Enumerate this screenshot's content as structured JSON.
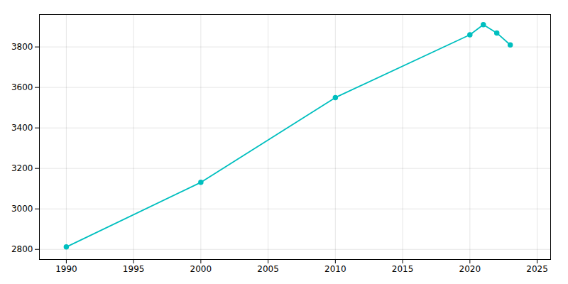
{
  "chart_data": {
    "type": "line",
    "x": [
      1990,
      2000,
      2010,
      2020,
      2021,
      2022,
      2023
    ],
    "values": [
      2812,
      3131,
      3550,
      3860,
      3910,
      3869,
      3810
    ],
    "color": "#00BFBF",
    "marker": "circle",
    "xlim": [
      1988,
      2026
    ],
    "ylim": [
      2750,
      3960
    ],
    "xticks": [
      1990,
      1995,
      2000,
      2005,
      2010,
      2015,
      2020,
      2025
    ],
    "yticks": [
      2800,
      3000,
      3200,
      3400,
      3600,
      3800
    ],
    "grid": true
  }
}
